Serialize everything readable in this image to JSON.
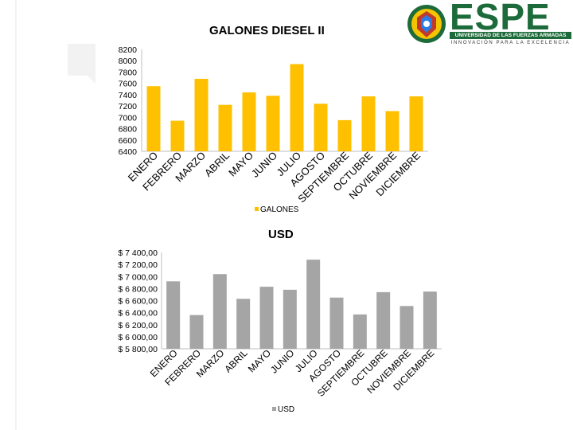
{
  "logo": {
    "brand": "ESPE",
    "university": "UNIVERSIDAD DE LAS FUERZAS ARMADAS",
    "motto": "INNOVACIÓN PARA LA EXCELENCIA"
  },
  "colors": {
    "gallons_bar": "#ffc000",
    "usd_bar": "#a5a5a5",
    "brand_green": "#1d6b3a"
  },
  "chart_data": [
    {
      "type": "bar",
      "title": "GALONES DIESEL II",
      "categories": [
        "ENERO",
        "FEBRERO",
        "MARZO",
        "ABRIL",
        "MAYO",
        "JUNIO",
        "JULIO",
        "AGOSTO",
        "SEPTIEMBRE",
        "OCTUBRE",
        "NOVIEMBRE",
        "DICIEMBRE"
      ],
      "series": [
        {
          "name": "GALONES",
          "values": [
            7550,
            6940,
            7680,
            7220,
            7440,
            7380,
            7940,
            7240,
            6950,
            7370,
            7110,
            7370
          ]
        }
      ],
      "ylim": [
        6400,
        8200
      ],
      "yticks": [
        "8200",
        "8000",
        "7800",
        "7600",
        "7400",
        "7200",
        "7000",
        "6800",
        "6600",
        "6400"
      ],
      "grid": false,
      "legend": "bottom"
    },
    {
      "type": "bar",
      "title": "USD",
      "categories": [
        "ENERO",
        "FEBRERO",
        "MARZO",
        "ABRIL",
        "MAYO",
        "JUNIO",
        "JULIO",
        "AGOSTO",
        "SEPTIEMBRE",
        "OCTUBRE",
        "NOVIEMBRE",
        "DICIEMBRE"
      ],
      "series": [
        {
          "name": "USD",
          "values": [
            6920,
            6360,
            7040,
            6630,
            6830,
            6780,
            7280,
            6650,
            6370,
            6740,
            6510,
            6750
          ]
        }
      ],
      "ylim": [
        5800,
        7400
      ],
      "yticks": [
        "$ 7 400,00",
        "$ 7 200,00",
        "$ 7 000,00",
        "$ 6 800,00",
        "$ 6 600,00",
        "$ 6 400,00",
        "$ 6 200,00",
        "$ 6 000,00",
        "$ 5 800,00"
      ],
      "grid": false,
      "legend": "bottom"
    }
  ]
}
